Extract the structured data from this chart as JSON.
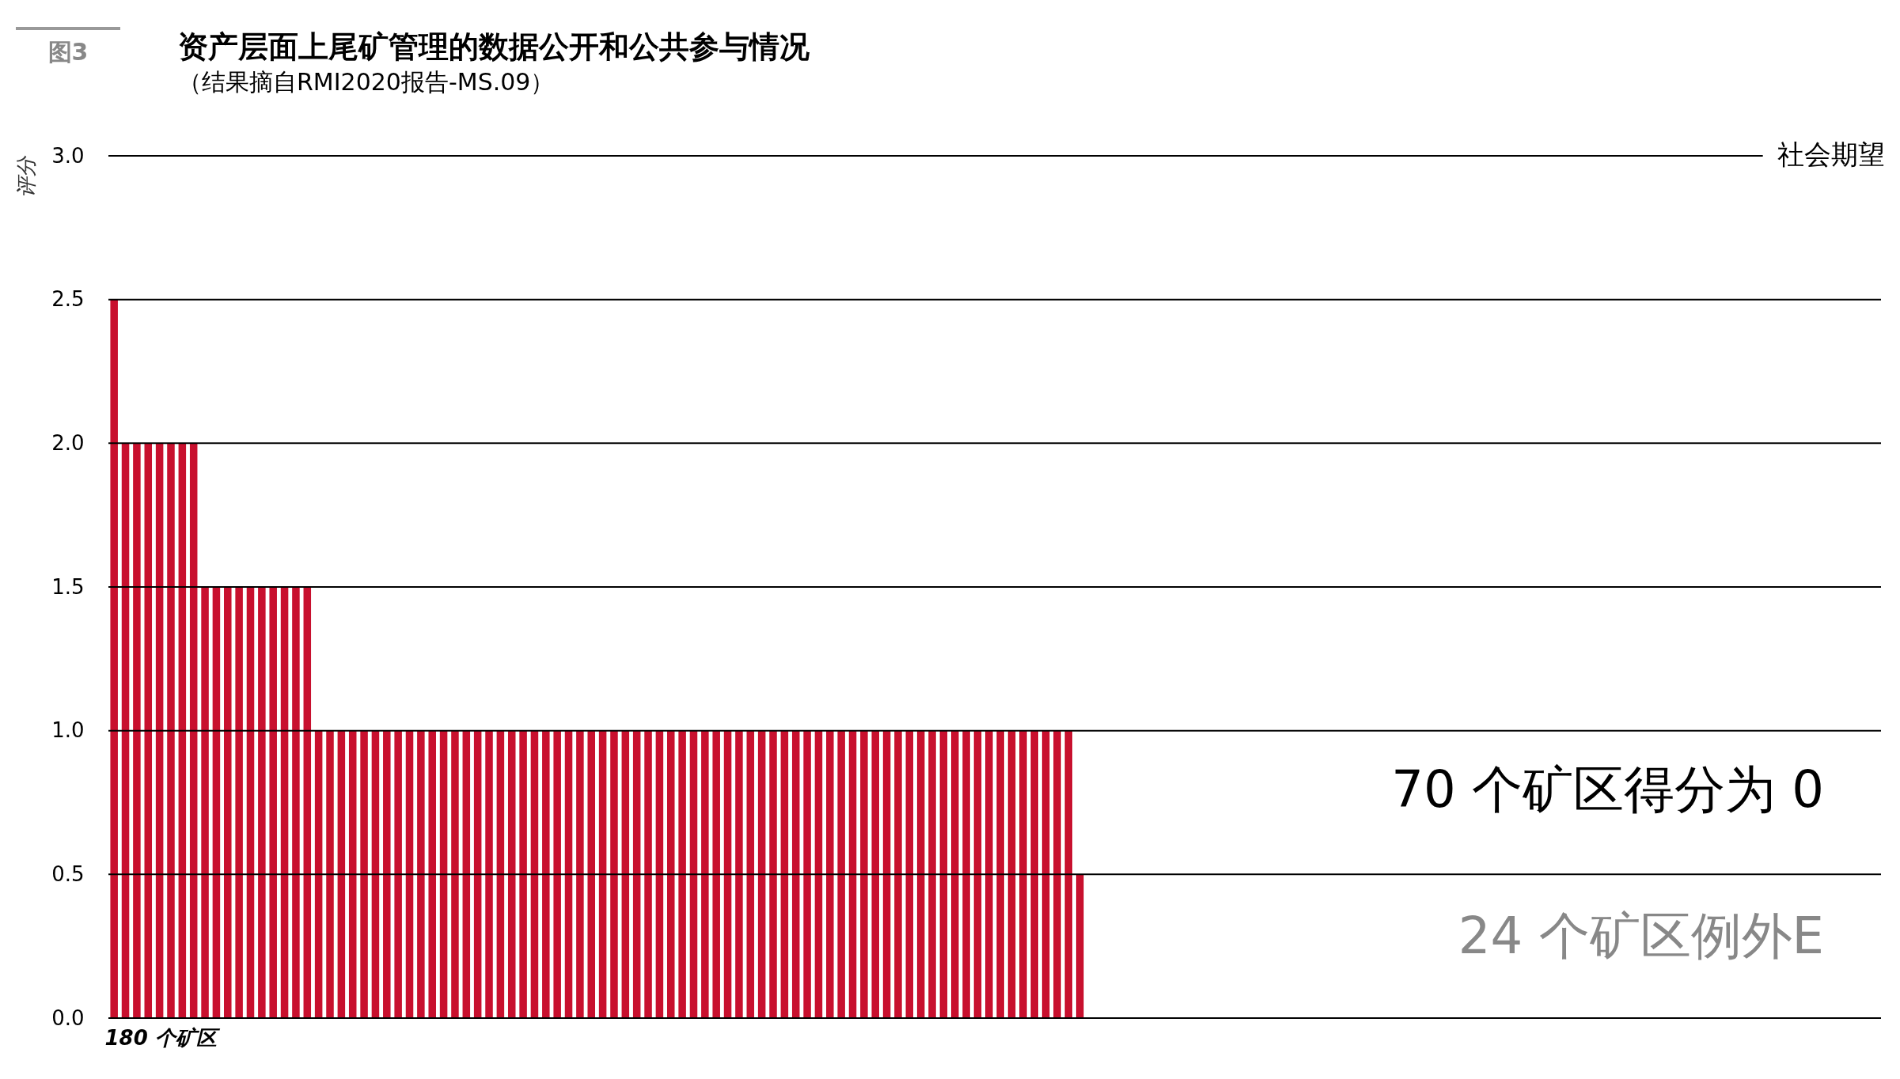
{
  "chart_data": {
    "type": "bar",
    "title": "资产层面上尾矿管理的数据公开和公共参与情况",
    "subtitle": "（结果摘自RMI2020报告-MS.09）",
    "xlabel": "180 个矿区",
    "ylabel": "评分",
    "categories": [
      null,
      null,
      null,
      null,
      null,
      null,
      null,
      null,
      null,
      null,
      null,
      null,
      null,
      null,
      null,
      null,
      null,
      null,
      null,
      null,
      null,
      null,
      null,
      null,
      null,
      null,
      null,
      null,
      null,
      null,
      null,
      null,
      null,
      null,
      null,
      null,
      null,
      null,
      null,
      null,
      null,
      null,
      null,
      null,
      null,
      null,
      null,
      null,
      null,
      null,
      null,
      null,
      null,
      null,
      null,
      null,
      null,
      null,
      null,
      null,
      null,
      null,
      null,
      null,
      null,
      null,
      null,
      null,
      null,
      null,
      null,
      null,
      null,
      null,
      null,
      null,
      null,
      null,
      null,
      null,
      null,
      null,
      null,
      null,
      null,
      null
    ],
    "values": [
      2.5,
      2,
      2,
      2,
      2,
      2,
      2,
      2,
      1.5,
      1.5,
      1.5,
      1.5,
      1.5,
      1.5,
      1.5,
      1.5,
      1.5,
      1.5,
      1,
      1,
      1,
      1,
      1,
      1,
      1,
      1,
      1,
      1,
      1,
      1,
      1,
      1,
      1,
      1,
      1,
      1,
      1,
      1,
      1,
      1,
      1,
      1,
      1,
      1,
      1,
      1,
      1,
      1,
      1,
      1,
      1,
      1,
      1,
      1,
      1,
      1,
      1,
      1,
      1,
      1,
      1,
      1,
      1,
      1,
      1,
      1,
      1,
      1,
      1,
      1,
      1,
      1,
      1,
      1,
      1,
      1,
      1,
      1,
      1,
      1,
      1,
      1,
      1,
      1,
      1,
      0.5
    ],
    "color": "#c8102e",
    "ylim": [
      0,
      3
    ],
    "yticks": [
      {
        "value": 0,
        "label": "0.0"
      },
      0.5,
      {
        "value": 1,
        "label": "1.0"
      },
      1.5,
      {
        "value": 2,
        "label": "2.0"
      },
      2.5,
      {
        "value": 3,
        "label": "3.0"
      }
    ],
    "grid": "y",
    "tick_labels": "y",
    "annotations": [
      "图3",
      "70 个矿区得分为 0",
      "24 个矿区例外E",
      "社会期望"
    ]
  }
}
